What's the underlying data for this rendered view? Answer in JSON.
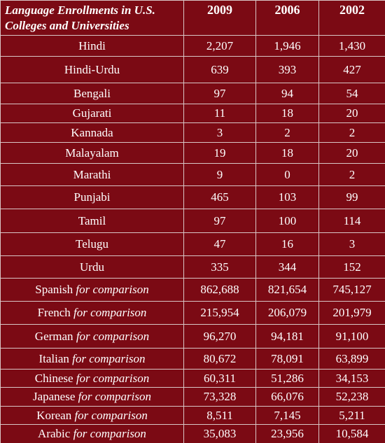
{
  "header": {
    "title": "Language Enrollments in U.S. Colleges and Universities",
    "years": [
      "2009",
      "2006",
      "2002"
    ]
  },
  "table": {
    "rows": [
      {
        "language": "Hindi",
        "values": [
          "2,207",
          "1,946",
          "1,430"
        ]
      },
      {
        "language": "Hindi-Urdu",
        "values": [
          "639",
          "393",
          "427"
        ]
      },
      {
        "language": "Bengali",
        "values": [
          "97",
          "94",
          "54"
        ]
      },
      {
        "language": "Gujarati",
        "values": [
          "11",
          "18",
          "20"
        ]
      },
      {
        "language": "Kannada",
        "values": [
          "3",
          "2",
          "2"
        ]
      },
      {
        "language": "Malayalam",
        "values": [
          "19",
          "18",
          "20"
        ]
      },
      {
        "language": "Marathi",
        "values": [
          "9",
          "0",
          "2"
        ]
      },
      {
        "language": "Punjabi",
        "values": [
          "465",
          "103",
          "99"
        ]
      },
      {
        "language": "Tamil",
        "values": [
          "97",
          "100",
          "114"
        ]
      },
      {
        "language": "Telugu",
        "values": [
          "47",
          "16",
          "3"
        ]
      },
      {
        "language": "Urdu",
        "values": [
          "335",
          "344",
          "152"
        ]
      },
      {
        "language": "Spanish",
        "note": "for comparison",
        "values": [
          "862,688",
          "821,654",
          "745,127"
        ]
      },
      {
        "language": "French",
        "note": "for comparison",
        "values": [
          "215,954",
          "206,079",
          "201,979"
        ]
      },
      {
        "language": "German",
        "note": "for comparison",
        "values": [
          "96,270",
          "94,181",
          "91,100"
        ]
      },
      {
        "language": "Italian",
        "note": "for comparison",
        "values": [
          "80,672",
          "78,091",
          "63,899"
        ]
      },
      {
        "language": "Chinese",
        "note": "for comparison",
        "values": [
          "60,311",
          "51,286",
          "34,153"
        ]
      },
      {
        "language": "Japanese",
        "note": "for comparison",
        "values": [
          "73,328",
          "66,076",
          "52,238"
        ]
      },
      {
        "language": "Korean",
        "note": "for comparison",
        "values": [
          "8,511",
          "7,145",
          "5,211"
        ]
      },
      {
        "language": "Arabic",
        "note": "for comparison",
        "values": [
          "35,083",
          "23,956",
          "10,584"
        ]
      }
    ]
  }
}
